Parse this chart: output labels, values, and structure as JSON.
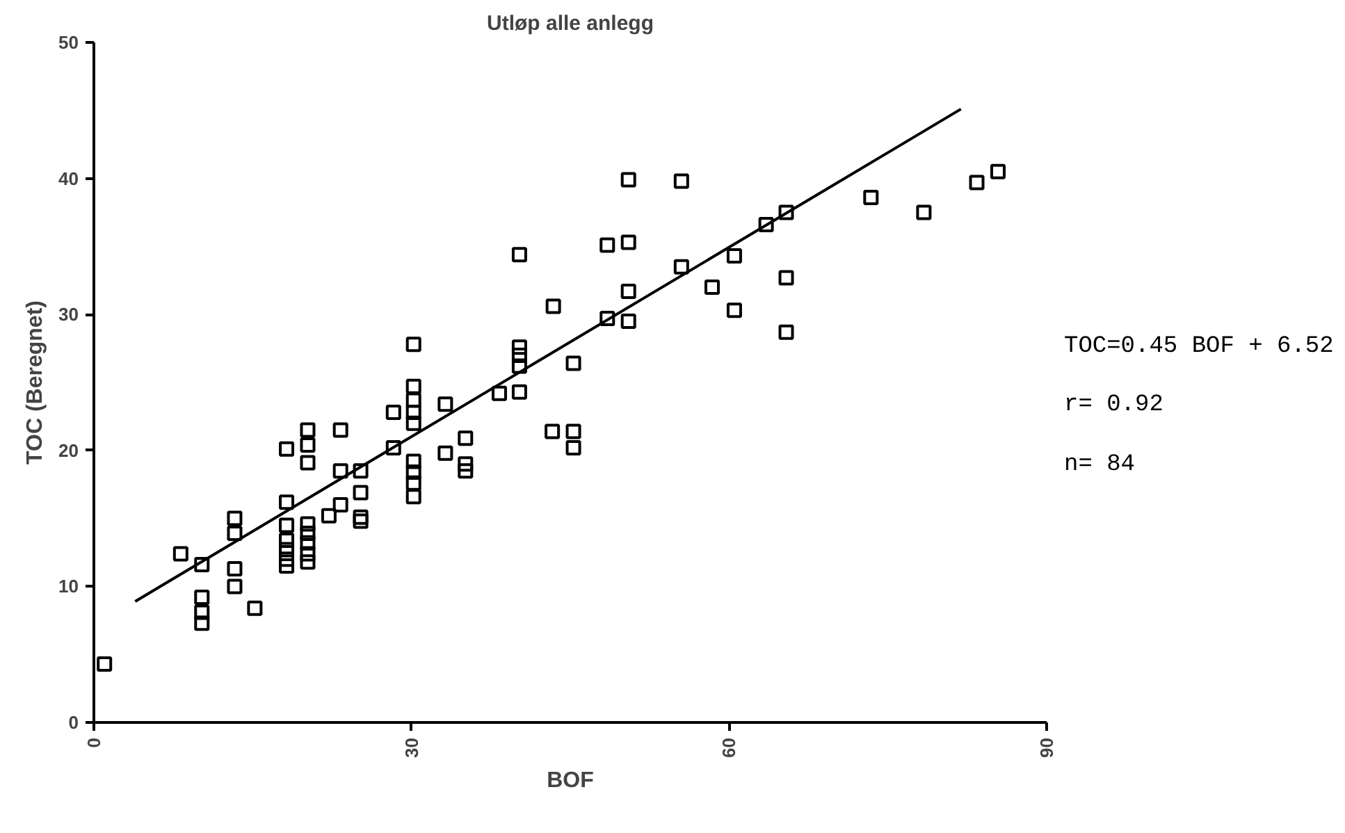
{
  "chart_data": {
    "type": "scatter",
    "title": "Utløp alle anlegg",
    "xlabel": "BOF",
    "ylabel": "TOC (Beregnet)",
    "xlim": [
      0,
      90
    ],
    "ylim": [
      0,
      50
    ],
    "xticks": [
      0,
      30,
      60,
      90
    ],
    "yticks": [
      0,
      10,
      20,
      30,
      40,
      50
    ],
    "grid": false,
    "annotations": [
      "TOC=0.45 BOF + 6.52",
      "r= 0.92",
      "n= 84"
    ],
    "series": [
      {
        "color": "#000000",
        "marker": "square",
        "x": [
          1,
          8.2,
          10.2,
          10.2,
          10.2,
          10.2,
          13.3,
          13.3,
          13.3,
          13.3,
          15.2,
          18.2,
          18.2,
          18.2,
          18.2,
          18.2,
          18.2,
          18.2,
          20.2,
          20.2,
          20.2,
          20.2,
          20.2,
          20.2,
          20.2,
          20.2,
          22.2,
          23.3,
          23.3,
          23.3,
          25.2,
          25.2,
          25.2,
          25.2,
          28.3,
          28.3,
          30.2,
          30.2,
          30.2,
          30.2,
          30.2,
          30.2,
          30.2,
          30.2,
          30.2,
          33.2,
          33.2,
          35.1,
          35.1,
          35.1,
          38.3,
          40.2,
          40.2,
          40.2,
          40.2,
          40.2,
          43.4,
          43.3,
          45.3,
          45.3,
          45.3,
          48.5,
          48.5,
          50.5,
          50.5,
          50.5,
          50.5,
          55.5,
          55.5,
          58.4,
          60.5,
          60.5,
          63.5,
          65.4,
          65.4,
          65.4,
          73.4,
          78.4,
          83.4,
          85.4
        ],
        "values": [
          4.3,
          12.4,
          11.6,
          9.2,
          8.1,
          7.3,
          15.0,
          13.9,
          11.3,
          10.0,
          8.4,
          20.1,
          16.2,
          14.5,
          13.4,
          12.7,
          12.0,
          11.5,
          21.5,
          20.4,
          19.1,
          14.6,
          13.9,
          13.2,
          12.4,
          11.8,
          15.2,
          21.5,
          18.5,
          16.0,
          18.5,
          16.9,
          15.1,
          14.8,
          22.8,
          20.2,
          27.8,
          24.7,
          23.7,
          22.8,
          22.0,
          19.2,
          18.4,
          17.6,
          16.6,
          23.4,
          19.8,
          20.9,
          19.0,
          18.5,
          24.2,
          34.4,
          27.6,
          27.0,
          26.2,
          24.3,
          30.6,
          21.4,
          26.4,
          21.4,
          20.2,
          35.1,
          29.7,
          39.9,
          35.3,
          31.7,
          29.5,
          39.8,
          33.5,
          32.0,
          34.3,
          30.3,
          36.6,
          37.5,
          32.7,
          28.7,
          38.6,
          37.5,
          39.7,
          40.5
        ]
      },
      {
        "type": "line",
        "color": "#000000",
        "line_style": "solid",
        "x": [
          3.9,
          81.9
        ],
        "values": [
          8.9,
          45.1
        ]
      }
    ]
  }
}
